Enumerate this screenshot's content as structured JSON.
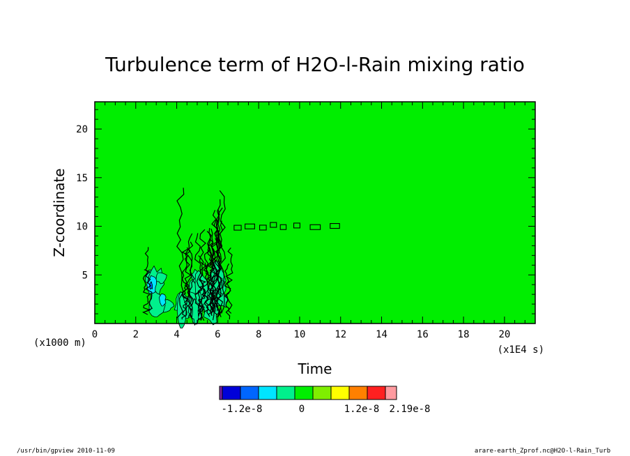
{
  "chart_data": {
    "type": "heatmap",
    "title": "Turbulence term of H2O-l-Rain mixing ratio",
    "xlabel": "Time",
    "ylabel": "Z-coordinate",
    "x_unit": "(x1E4 s)",
    "y_unit": "(x1000 m)",
    "xlim": [
      0,
      21.5
    ],
    "ylim": [
      0,
      22.8
    ],
    "xticks": [
      0,
      2,
      4,
      6,
      8,
      10,
      12,
      14,
      16,
      18,
      20
    ],
    "yticks": [
      5,
      10,
      15,
      20
    ],
    "colorbar": {
      "colors": [
        "#7a1fa2",
        "#0000d8",
        "#0066ff",
        "#00e5ff",
        "#00f08c",
        "#00ee00",
        "#7fee00",
        "#ffff00",
        "#ff8000",
        "#ff2020",
        "#ff9ba0"
      ],
      "tick_labels": [
        "-1.2e-8",
        "0",
        "1.2e-8",
        "2.19e-8"
      ],
      "tick_values": [
        -1.2e-08,
        0,
        1.2e-08,
        2.19e-08
      ]
    },
    "background_value": 0,
    "regions": [
      {
        "name": "active convection band",
        "x_range": [
          2.3,
          6.8
        ],
        "z_range": [
          0,
          14.2
        ],
        "min_value_color": "#0066ff"
      },
      {
        "name": "contour streak near z=10",
        "x_range": [
          6.8,
          12.9
        ],
        "z_range": [
          9.7,
          10.3
        ]
      }
    ]
  },
  "footer": {
    "left": "/usr/bin/gpview   2010-11-09",
    "right": "arare-earth_Zprof.nc@H2O-l-Rain_Turb"
  }
}
